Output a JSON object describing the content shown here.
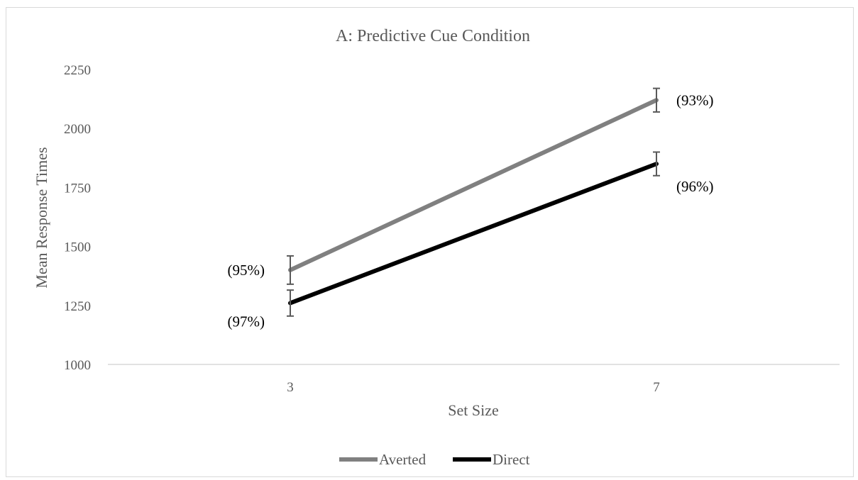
{
  "chart_data": {
    "type": "line",
    "title": "A: Predictive Cue Condition",
    "xlabel": "Set Size",
    "ylabel": "Mean Response Times",
    "categories": [
      "3",
      "7"
    ],
    "ylim": [
      1000,
      2250
    ],
    "yticks": [
      1000,
      1250,
      1500,
      1750,
      2000,
      2250
    ],
    "grid": false,
    "legend_position": "bottom",
    "series": [
      {
        "name": "Averted",
        "color": "#808080",
        "values": [
          1400,
          2120
        ],
        "error": [
          60,
          50
        ],
        "point_labels": [
          "(95%)",
          "(93%)"
        ]
      },
      {
        "name": "Direct",
        "color": "#000000",
        "values": [
          1260,
          1850
        ],
        "error": [
          55,
          50
        ],
        "point_labels": [
          "(97%)",
          "(96%)"
        ]
      }
    ]
  }
}
